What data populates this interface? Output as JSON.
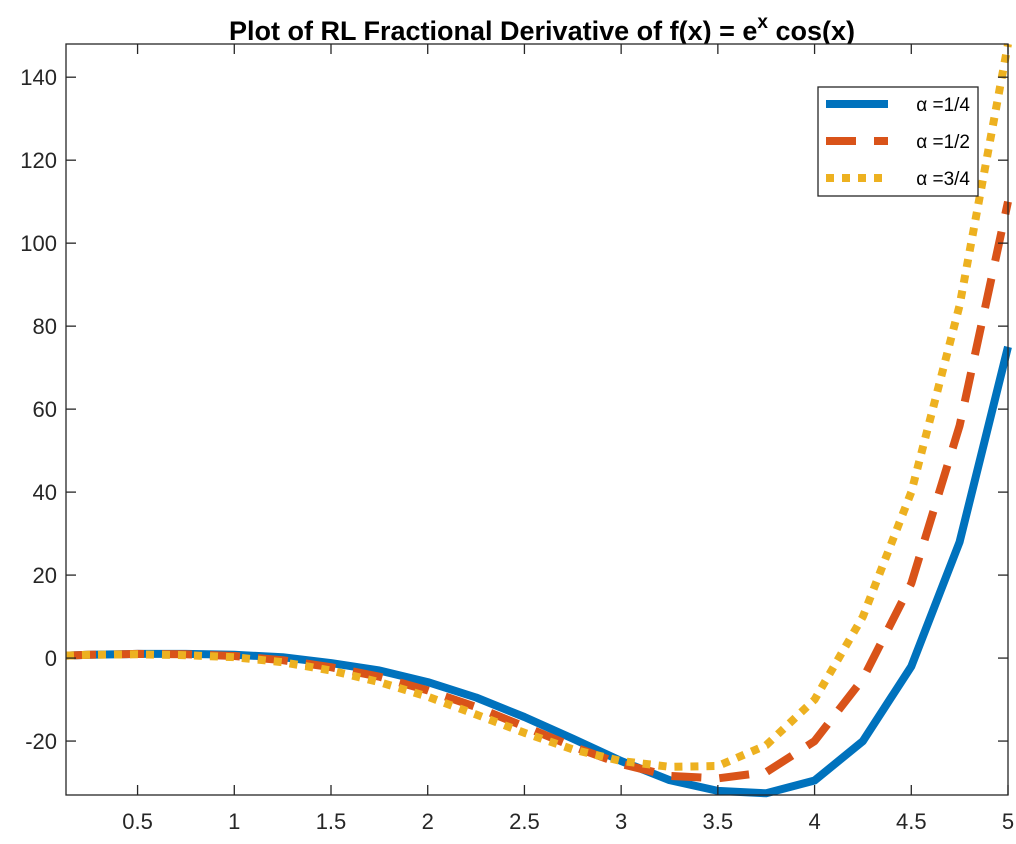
{
  "chart_data": {
    "type": "line",
    "title": "Plot of RL Fractional Derivative of f(x) = e",
    "title_superscript": "x",
    "title_suffix": " cos(x)",
    "xlabel": "",
    "ylabel": "",
    "xlim": [
      0.13,
      5
    ],
    "ylim": [
      -33,
      148
    ],
    "xticks": [
      0.5,
      1,
      1.5,
      2,
      2.5,
      3,
      3.5,
      4,
      4.5,
      5
    ],
    "xtick_labels": [
      "0.5",
      "1",
      "1.5",
      "2",
      "2.5",
      "3",
      "3.5",
      "4",
      "4.5",
      "5"
    ],
    "yticks": [
      -20,
      0,
      20,
      40,
      60,
      80,
      100,
      120,
      140
    ],
    "ytick_labels": [
      "-20",
      "0",
      "20",
      "40",
      "60",
      "80",
      "100",
      "120",
      "140"
    ],
    "grid": false,
    "legend_position": "top-right",
    "x": [
      0.13,
      0.25,
      0.5,
      0.75,
      1,
      1.25,
      1.5,
      1.75,
      2,
      2.25,
      2.5,
      2.75,
      3,
      3.25,
      3.5,
      3.75,
      4,
      4.25,
      4.5,
      4.75,
      5
    ],
    "series": [
      {
        "name": "α =1/4",
        "color": "#0072BD",
        "style": "solid",
        "values": [
          0.6,
          0.8,
          1.0,
          1.0,
          0.8,
          0.2,
          -1.2,
          -3.0,
          -5.8,
          -9.5,
          -14.2,
          -19.4,
          -24.8,
          -29.4,
          -32.0,
          -32.6,
          -29.5,
          -20.0,
          -2.0,
          28.0,
          75.0
        ]
      },
      {
        "name": "α =1/2",
        "color": "#D95319",
        "style": "dashed",
        "values": [
          0.6,
          0.8,
          1.0,
          0.9,
          0.5,
          -0.5,
          -2.2,
          -4.5,
          -7.8,
          -11.8,
          -16.5,
          -21.3,
          -25.5,
          -28.4,
          -29.0,
          -27.5,
          -20.0,
          -5.0,
          18.0,
          56.0,
          110.0
        ]
      },
      {
        "name": "α =3/4",
        "color": "#EDB120",
        "style": "dotted",
        "values": [
          0.6,
          0.8,
          0.9,
          0.7,
          0.2,
          -1.0,
          -3.0,
          -5.8,
          -9.3,
          -13.6,
          -18.0,
          -22.0,
          -24.8,
          -26.2,
          -26.0,
          -21.0,
          -10.0,
          10.0,
          40.0,
          85.0,
          148.0
        ]
      }
    ]
  }
}
